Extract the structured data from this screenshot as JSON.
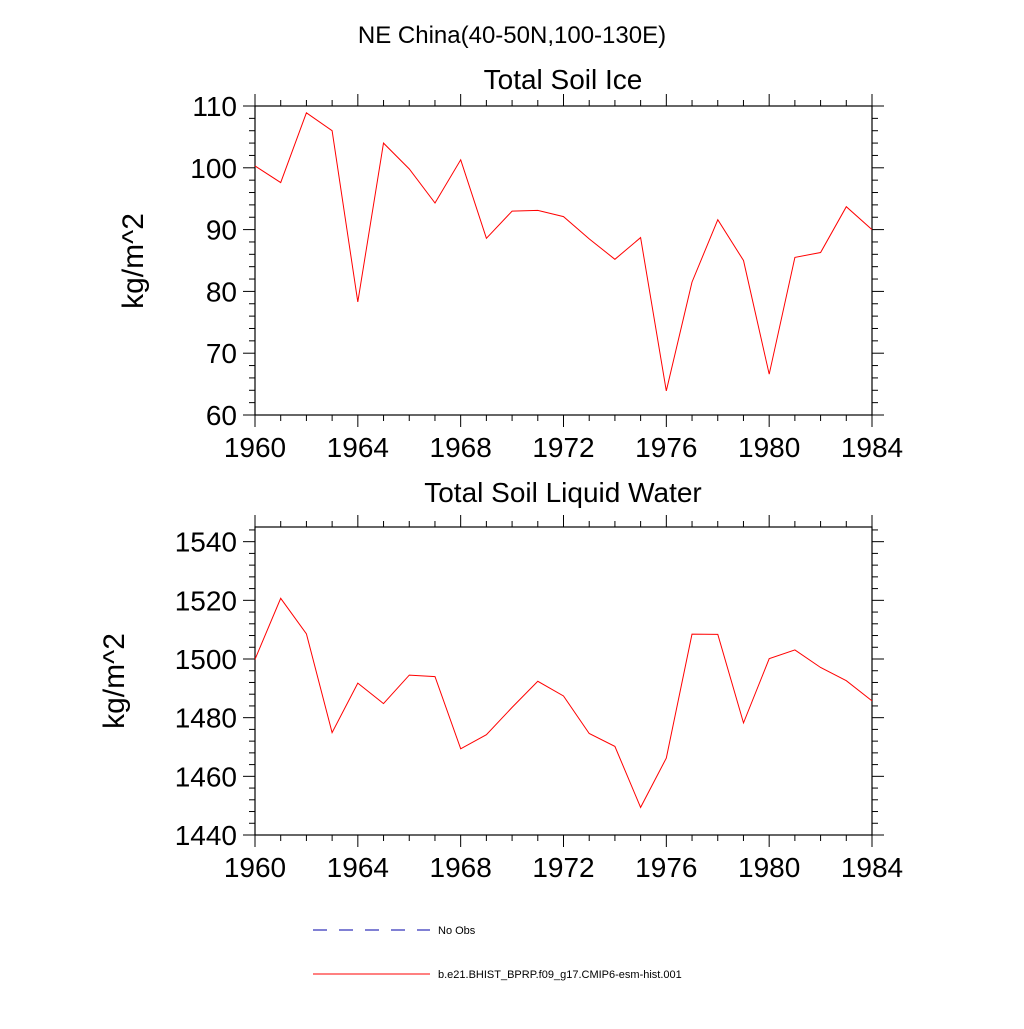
{
  "suptitle": "NE China(40-50N,100-130E)",
  "colors": {
    "model_line": "#ff0000",
    "obs_line": "#0000aa"
  },
  "legend": {
    "obs_label": "No Obs",
    "model_label": "b.e21.BHIST_BPRP.f09_g17.CMIP6-esm-hist.001"
  },
  "chart_data": [
    {
      "type": "line",
      "title": "Total Soil Ice",
      "ylabel": "kg/m^2",
      "xlabel": "",
      "xlim": [
        1960,
        1984
      ],
      "ylim": [
        60,
        110
      ],
      "xticks": [
        1960,
        1964,
        1968,
        1972,
        1976,
        1980,
        1984
      ],
      "yticks": [
        60,
        70,
        80,
        90,
        100,
        110
      ],
      "x": [
        1960,
        1961,
        1962,
        1963,
        1964,
        1965,
        1966,
        1967,
        1968,
        1969,
        1970,
        1971,
        1972,
        1973,
        1974,
        1975,
        1976,
        1977,
        1978,
        1979,
        1980,
        1981,
        1982,
        1983,
        1984
      ],
      "series": [
        {
          "name": "b.e21.BHIST_BPRP.f09_g17.CMIP6-esm-hist.001",
          "values": [
            100.3,
            97.6,
            108.9,
            106.0,
            78.3,
            104.0,
            99.8,
            94.3,
            101.3,
            88.6,
            93.0,
            93.1,
            92.1,
            88.5,
            85.2,
            88.7,
            63.9,
            81.5,
            91.6,
            85.0,
            66.6,
            85.5,
            86.3,
            93.7,
            90.0
          ]
        }
      ]
    },
    {
      "type": "line",
      "title": "Total Soil Liquid Water",
      "ylabel": "kg/m^2",
      "xlabel": "",
      "xlim": [
        1960,
        1984
      ],
      "ylim": [
        1440,
        1545
      ],
      "xticks": [
        1960,
        1964,
        1968,
        1972,
        1976,
        1980,
        1984
      ],
      "yticks": [
        1440,
        1460,
        1480,
        1500,
        1520,
        1540
      ],
      "x": [
        1960,
        1961,
        1962,
        1963,
        1964,
        1965,
        1966,
        1967,
        1968,
        1969,
        1970,
        1971,
        1972,
        1973,
        1974,
        1975,
        1976,
        1977,
        1978,
        1979,
        1980,
        1981,
        1982,
        1983,
        1984
      ],
      "series": [
        {
          "name": "b.e21.BHIST_BPRP.f09_g17.CMIP6-esm-hist.001",
          "values": [
            1499.9,
            1520.7,
            1508.6,
            1474.9,
            1491.8,
            1484.8,
            1494.5,
            1494.0,
            1469.4,
            1474.2,
            1483.5,
            1492.4,
            1487.4,
            1474.6,
            1470.2,
            1449.4,
            1466.2,
            1508.5,
            1508.4,
            1478.2,
            1500.1,
            1503.1,
            1497.1,
            1492.6,
            1485.7
          ]
        }
      ]
    }
  ]
}
